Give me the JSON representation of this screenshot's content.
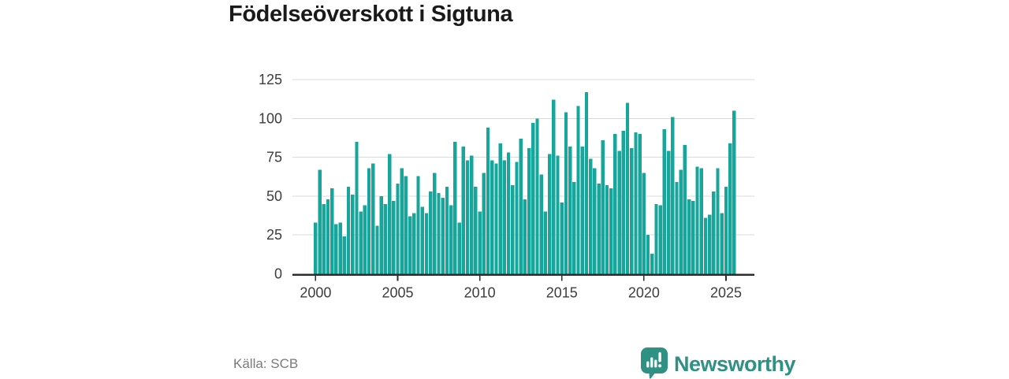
{
  "chart": {
    "title": "Födelseöverskott i Sigtuna"
  },
  "chart_data": {
    "type": "bar",
    "title": "Födelseöverskott i Sigtuna",
    "period": "quarterly",
    "x_start": "2000 Q1",
    "x_end": "2025 Q3",
    "values": [
      33,
      67,
      45,
      48,
      55,
      32,
      33,
      24,
      56,
      51,
      85,
      40,
      44,
      68,
      71,
      31,
      50,
      45,
      77,
      47,
      58,
      68,
      63,
      37,
      39,
      63,
      43,
      39,
      53,
      65,
      52,
      49,
      56,
      44,
      85,
      33,
      82,
      73,
      76,
      56,
      40,
      65,
      94,
      73,
      71,
      84,
      73,
      78,
      57,
      72,
      87,
      48,
      81,
      97,
      100,
      64,
      40,
      77,
      112,
      76,
      46,
      104,
      82,
      59,
      108,
      82,
      117,
      74,
      68,
      58,
      86,
      57,
      55,
      90,
      79,
      92,
      110,
      81,
      91,
      90,
      65,
      25,
      13,
      45,
      44,
      93,
      79,
      101,
      59,
      67,
      83,
      48,
      47,
      69,
      68,
      36,
      38,
      53,
      68,
      39,
      56,
      84,
      105
    ],
    "x_tick_labels": [
      "2000",
      "2005",
      "2010",
      "2015",
      "2020",
      "2025"
    ],
    "yticks": [
      0,
      25,
      50,
      75,
      100,
      125
    ],
    "ylim": [
      0,
      125
    ],
    "grid": "horizontal",
    "legend": "none",
    "bar_color": "#17A69B"
  },
  "footer": {
    "source": "Källa: SCB",
    "brand": "Newsworthy",
    "brand_color": "#2E9184"
  }
}
